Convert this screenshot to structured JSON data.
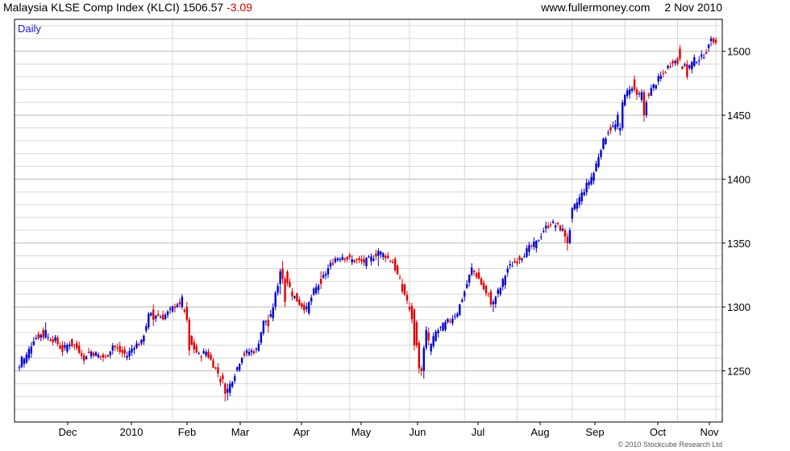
{
  "header": {
    "title": "Malaysia KLSE Comp Index (KLCI)",
    "last": "1506.57",
    "change": "-3.09",
    "site": "www.fullermoney.com",
    "date": "2 Nov 2010"
  },
  "footer": {
    "copyright": "© 2010 Stockcube Research Ltd"
  },
  "colors": {
    "up": "#0000cc",
    "down": "#dd0000",
    "grid": "#d8d8d8",
    "grid_major": "#b8b8b8"
  },
  "chart_data": {
    "type": "candlestick",
    "period_label": "Daily",
    "y_axis_side": "right",
    "ylim": [
      1210,
      1525
    ],
    "y_ticks": [
      1250,
      1300,
      1350,
      1400,
      1450,
      1500
    ],
    "x_ticks": [
      "Dec",
      "2010",
      "Feb",
      "Mar",
      "Apr",
      "May",
      "Jun",
      "Jul",
      "Aug",
      "Sep",
      "Oct",
      "Nov"
    ],
    "grid": true,
    "anchors": [
      [
        0,
        1253
      ],
      [
        3,
        1262
      ],
      [
        6,
        1275
      ],
      [
        9,
        1278
      ],
      [
        12,
        1276
      ],
      [
        15,
        1274
      ],
      [
        18,
        1266
      ],
      [
        21,
        1272
      ],
      [
        24,
        1268
      ],
      [
        27,
        1262
      ],
      [
        30,
        1265
      ],
      [
        33,
        1262
      ],
      [
        36,
        1260
      ],
      [
        39,
        1270
      ],
      [
        42,
        1265
      ],
      [
        45,
        1262
      ],
      [
        48,
        1270
      ],
      [
        51,
        1272
      ],
      [
        54,
        1293
      ],
      [
        57,
        1294
      ],
      [
        60,
        1292
      ],
      [
        63,
        1297
      ],
      [
        66,
        1303
      ],
      [
        69,
        1294
      ],
      [
        72,
        1270
      ],
      [
        75,
        1262
      ],
      [
        78,
        1265
      ],
      [
        81,
        1255
      ],
      [
        84,
        1245
      ],
      [
        87,
        1235
      ],
      [
        90,
        1248
      ],
      [
        93,
        1262
      ],
      [
        96,
        1265
      ],
      [
        99,
        1266
      ],
      [
        102,
        1288
      ],
      [
        105,
        1292
      ],
      [
        108,
        1318
      ],
      [
        111,
        1325
      ],
      [
        114,
        1310
      ],
      [
        117,
        1303
      ],
      [
        120,
        1298
      ],
      [
        123,
        1312
      ],
      [
        126,
        1320
      ],
      [
        129,
        1330
      ],
      [
        132,
        1338
      ],
      [
        135,
        1340
      ],
      [
        138,
        1337
      ],
      [
        141,
        1336
      ],
      [
        144,
        1335
      ],
      [
        147,
        1338
      ],
      [
        150,
        1343
      ],
      [
        153,
        1340
      ],
      [
        156,
        1335
      ],
      [
        159,
        1320
      ],
      [
        162,
        1305
      ],
      [
        165,
        1285
      ],
      [
        168,
        1262
      ],
      [
        171,
        1265
      ],
      [
        174,
        1280
      ],
      [
        177,
        1285
      ],
      [
        180,
        1290
      ],
      [
        183,
        1296
      ],
      [
        186,
        1312
      ],
      [
        189,
        1330
      ],
      [
        192,
        1322
      ],
      [
        195,
        1310
      ],
      [
        198,
        1305
      ],
      [
        201,
        1315
      ],
      [
        204,
        1330
      ],
      [
        207,
        1335
      ],
      [
        210,
        1340
      ],
      [
        213,
        1346
      ],
      [
        216,
        1350
      ],
      [
        219,
        1360
      ],
      [
        222,
        1366
      ],
      [
        225,
        1363
      ],
      [
        228,
        1358
      ],
      [
        231,
        1375
      ],
      [
        234,
        1385
      ],
      [
        237,
        1395
      ],
      [
        240,
        1405
      ],
      [
        243,
        1425
      ],
      [
        246,
        1438
      ],
      [
        249,
        1442
      ],
      [
        252,
        1460
      ],
      [
        255,
        1472
      ],
      [
        258,
        1466
      ],
      [
        261,
        1462
      ],
      [
        264,
        1470
      ],
      [
        267,
        1478
      ],
      [
        270,
        1485
      ],
      [
        273,
        1493
      ],
      [
        276,
        1490
      ],
      [
        279,
        1486
      ],
      [
        282,
        1493
      ],
      [
        285,
        1495
      ],
      [
        288,
        1503
      ],
      [
        291,
        1506
      ]
    ],
    "overrides": [
      [
        0,
        1253,
        1255,
        1250,
        1253
      ],
      [
        1,
        1253,
        1262,
        1252,
        1261
      ],
      [
        10,
        1282,
        1284,
        1274,
        1276
      ],
      [
        11,
        1276,
        1288,
        1275,
        1282
      ],
      [
        27,
        1262,
        1264,
        1255,
        1258
      ],
      [
        56,
        1298,
        1302,
        1285,
        1290
      ],
      [
        68,
        1300,
        1310,
        1298,
        1308
      ],
      [
        70,
        1300,
        1304,
        1288,
        1290
      ],
      [
        71,
        1290,
        1292,
        1262,
        1266
      ],
      [
        84,
        1244,
        1246,
        1238,
        1241
      ],
      [
        86,
        1240,
        1241,
        1226,
        1232
      ],
      [
        87,
        1233,
        1240,
        1227,
        1236
      ],
      [
        104,
        1290,
        1294,
        1280,
        1285
      ],
      [
        109,
        1318,
        1330,
        1310,
        1328
      ],
      [
        110,
        1330,
        1336,
        1318,
        1322
      ],
      [
        111,
        1322,
        1324,
        1300,
        1304
      ],
      [
        126,
        1322,
        1328,
        1314,
        1318
      ],
      [
        150,
        1340,
        1346,
        1332,
        1344
      ],
      [
        160,
        1318,
        1322,
        1310,
        1312
      ],
      [
        163,
        1300,
        1304,
        1296,
        1298
      ],
      [
        165,
        1298,
        1299,
        1266,
        1270
      ],
      [
        166,
        1288,
        1290,
        1268,
        1270
      ],
      [
        167,
        1272,
        1274,
        1248,
        1252
      ],
      [
        168,
        1252,
        1254,
        1246,
        1250
      ],
      [
        169,
        1250,
        1270,
        1244,
        1268
      ],
      [
        170,
        1268,
        1285,
        1266,
        1282
      ],
      [
        171,
        1280,
        1284,
        1270,
        1274
      ],
      [
        197,
        1312,
        1314,
        1300,
        1302
      ],
      [
        198,
        1302,
        1306,
        1296,
        1304
      ],
      [
        228,
        1360,
        1362,
        1350,
        1355
      ],
      [
        229,
        1355,
        1358,
        1344,
        1350
      ],
      [
        230,
        1350,
        1362,
        1349,
        1360
      ],
      [
        251,
        1438,
        1444,
        1434,
        1440
      ],
      [
        252,
        1440,
        1462,
        1438,
        1460
      ],
      [
        257,
        1478,
        1481,
        1468,
        1470
      ],
      [
        258,
        1470,
        1472,
        1462,
        1466
      ],
      [
        260,
        1462,
        1470,
        1460,
        1468
      ],
      [
        261,
        1468,
        1470,
        1445,
        1450
      ],
      [
        262,
        1450,
        1462,
        1448,
        1460
      ],
      [
        276,
        1502,
        1505,
        1492,
        1494
      ],
      [
        279,
        1490,
        1493,
        1478,
        1480
      ],
      [
        289,
        1508,
        1512,
        1504,
        1510
      ],
      [
        290,
        1510,
        1511,
        1505,
        1507
      ],
      [
        291,
        1509,
        1511,
        1505,
        1506.57
      ]
    ]
  }
}
